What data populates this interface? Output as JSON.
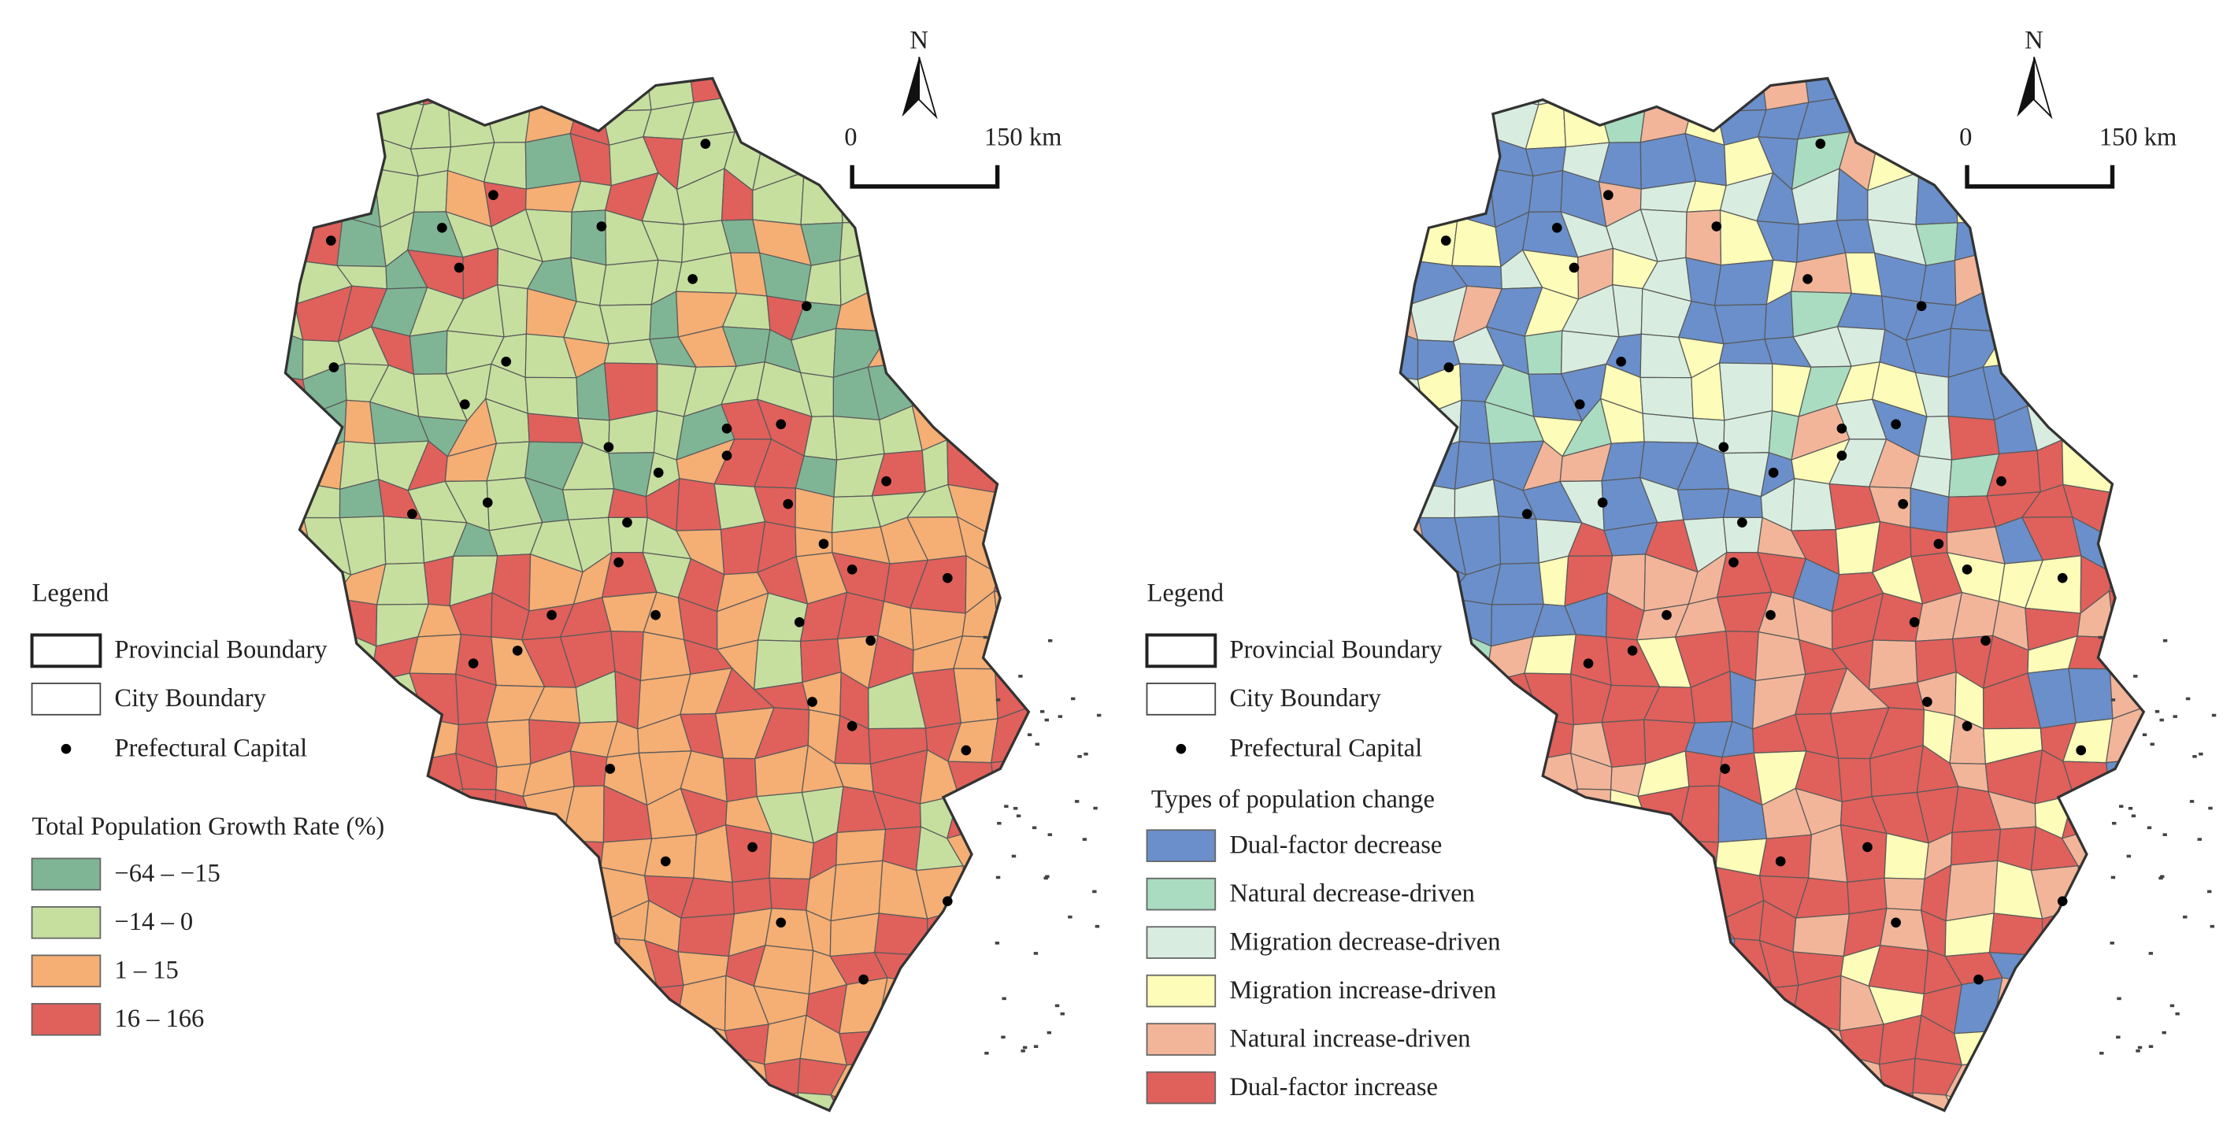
{
  "maps": [
    {
      "north": "N",
      "scale_labels": [
        "0",
        "150 km"
      ],
      "legend": {
        "title": "Legend",
        "items": [
          "Provincial Boundary",
          "City Boundary",
          "Prefectural Capital"
        ]
      },
      "classification": {
        "title": "Total Population Growth Rate (%)",
        "classes": [
          {
            "label": "−64 – −15",
            "color": "#7fb595"
          },
          {
            "label": "−14 – 0",
            "color": "#c6df9f"
          },
          {
            "label": "1 – 15",
            "color": "#f5ae74"
          },
          {
            "label": "16 – 166",
            "color": "#e0605c"
          }
        ]
      }
    },
    {
      "north": "N",
      "scale_labels": [
        "0",
        "150 km"
      ],
      "legend": {
        "title": "Legend",
        "items": [
          "Provincial Boundary",
          "City Boundary",
          "Prefectural Capital"
        ]
      },
      "classification": {
        "title": "Types of population change",
        "classes": [
          {
            "label": "Dual-factor decrease",
            "color": "#6a8fcb"
          },
          {
            "label": "Natural decrease-driven",
            "color": "#a9dcc0"
          },
          {
            "label": "Migration decrease-driven",
            "color": "#d8ede0"
          },
          {
            "label": "Migration increase-driven",
            "color": "#fdfcb8"
          },
          {
            "label": "Natural increase-driven",
            "color": "#f2b59a"
          },
          {
            "label": "Dual-factor increase",
            "color": "#e0605c"
          }
        ]
      }
    }
  ]
}
